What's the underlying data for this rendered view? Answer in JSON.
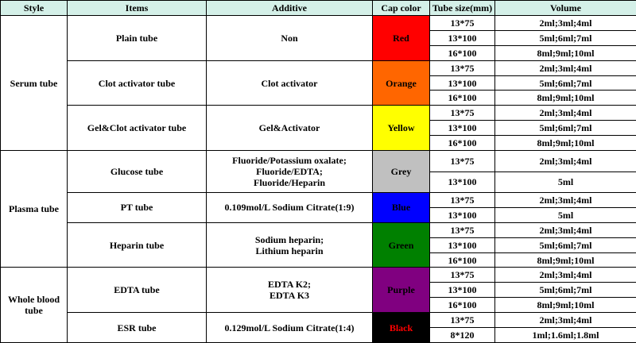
{
  "headers": {
    "style": "Style",
    "items": "Items",
    "additive": "Additive",
    "cap_color": "Cap color",
    "tube_size": "Tube size(mm)",
    "volume": "Volume"
  },
  "groups": [
    {
      "style": "Serum tube",
      "items": [
        {
          "name": "Plain tube",
          "additive": "Non",
          "cap": {
            "label": "Red",
            "bg": "#ff0000",
            "fg": "#000000"
          },
          "sizes": [
            {
              "size": "13*75",
              "volume": "2ml;3ml;4ml"
            },
            {
              "size": "13*100",
              "volume": "5ml;6ml;7ml"
            },
            {
              "size": "16*100",
              "volume": "8ml;9ml;10ml"
            }
          ]
        },
        {
          "name": "Clot activator tube",
          "additive": "Clot activator",
          "cap": {
            "label": "Orange",
            "bg": "#ff6600",
            "fg": "#000000"
          },
          "sizes": [
            {
              "size": "13*75",
              "volume": "2ml;3ml;4ml"
            },
            {
              "size": "13*100",
              "volume": "5ml;6ml;7ml"
            },
            {
              "size": "16*100",
              "volume": "8ml;9ml;10ml"
            }
          ]
        },
        {
          "name": "Gel&Clot activator tube",
          "additive": "Gel&Activator",
          "cap": {
            "label": "Yellow",
            "bg": "#ffff00",
            "fg": "#000000"
          },
          "sizes": [
            {
              "size": "13*75",
              "volume": "2ml;3ml;4ml"
            },
            {
              "size": "13*100",
              "volume": "5ml;6ml;7ml"
            },
            {
              "size": "16*100",
              "volume": "8ml;9ml;10ml"
            }
          ]
        }
      ]
    },
    {
      "style": "Plasma tube",
      "items": [
        {
          "name": "Glucose tube",
          "additive": "Fluoride/Potassium oxalate;\nFluoride/EDTA;\nFluoride/Heparin",
          "cap": {
            "label": "Grey",
            "bg": "#c0c0c0",
            "fg": "#000000"
          },
          "sizes": [
            {
              "size": "13*75",
              "volume": "2ml;3ml;4ml",
              "tall": true
            },
            {
              "size": "13*100",
              "volume": "5ml",
              "tall": true
            }
          ]
        },
        {
          "name": "PT tube",
          "additive": "0.109mol/L Sodium Citrate(1:9)",
          "cap": {
            "label": "Blue",
            "bg": "#0000ff",
            "fg": "#000000"
          },
          "sizes": [
            {
              "size": "13*75",
              "volume": "2ml;3ml;4ml"
            },
            {
              "size": "13*100",
              "volume": "5ml"
            }
          ]
        },
        {
          "name": "Heparin tube",
          "additive": "Sodium heparin;\nLithium heparin",
          "cap": {
            "label": "Green",
            "bg": "#008000",
            "fg": "#000000"
          },
          "sizes": [
            {
              "size": "13*75",
              "volume": "2ml;3ml;4ml"
            },
            {
              "size": "13*100",
              "volume": "5ml;6ml;7ml"
            },
            {
              "size": "16*100",
              "volume": "8ml;9ml;10ml"
            }
          ]
        }
      ]
    },
    {
      "style": "Whole blood\ntube",
      "items": [
        {
          "name": "EDTA tube",
          "additive": "EDTA K2;\nEDTA K3",
          "cap": {
            "label": "Purple",
            "bg": "#800080",
            "fg": "#000000"
          },
          "sizes": [
            {
              "size": "13*75",
              "volume": "2ml;3ml;4ml"
            },
            {
              "size": "13*100",
              "volume": "5ml;6ml;7ml"
            },
            {
              "size": "16*100",
              "volume": "8ml;9ml;10ml"
            }
          ]
        },
        {
          "name": "ESR tube",
          "additive": "0.129mol/L Sodium Citrate(1:4)",
          "cap": {
            "label": "Black",
            "bg": "#000000",
            "fg": "#ff0000"
          },
          "sizes": [
            {
              "size": "13*75",
              "volume": "2ml;3ml;4ml"
            },
            {
              "size": "8*120",
              "volume": "1ml;1.6ml;1.8ml"
            }
          ]
        }
      ]
    }
  ]
}
